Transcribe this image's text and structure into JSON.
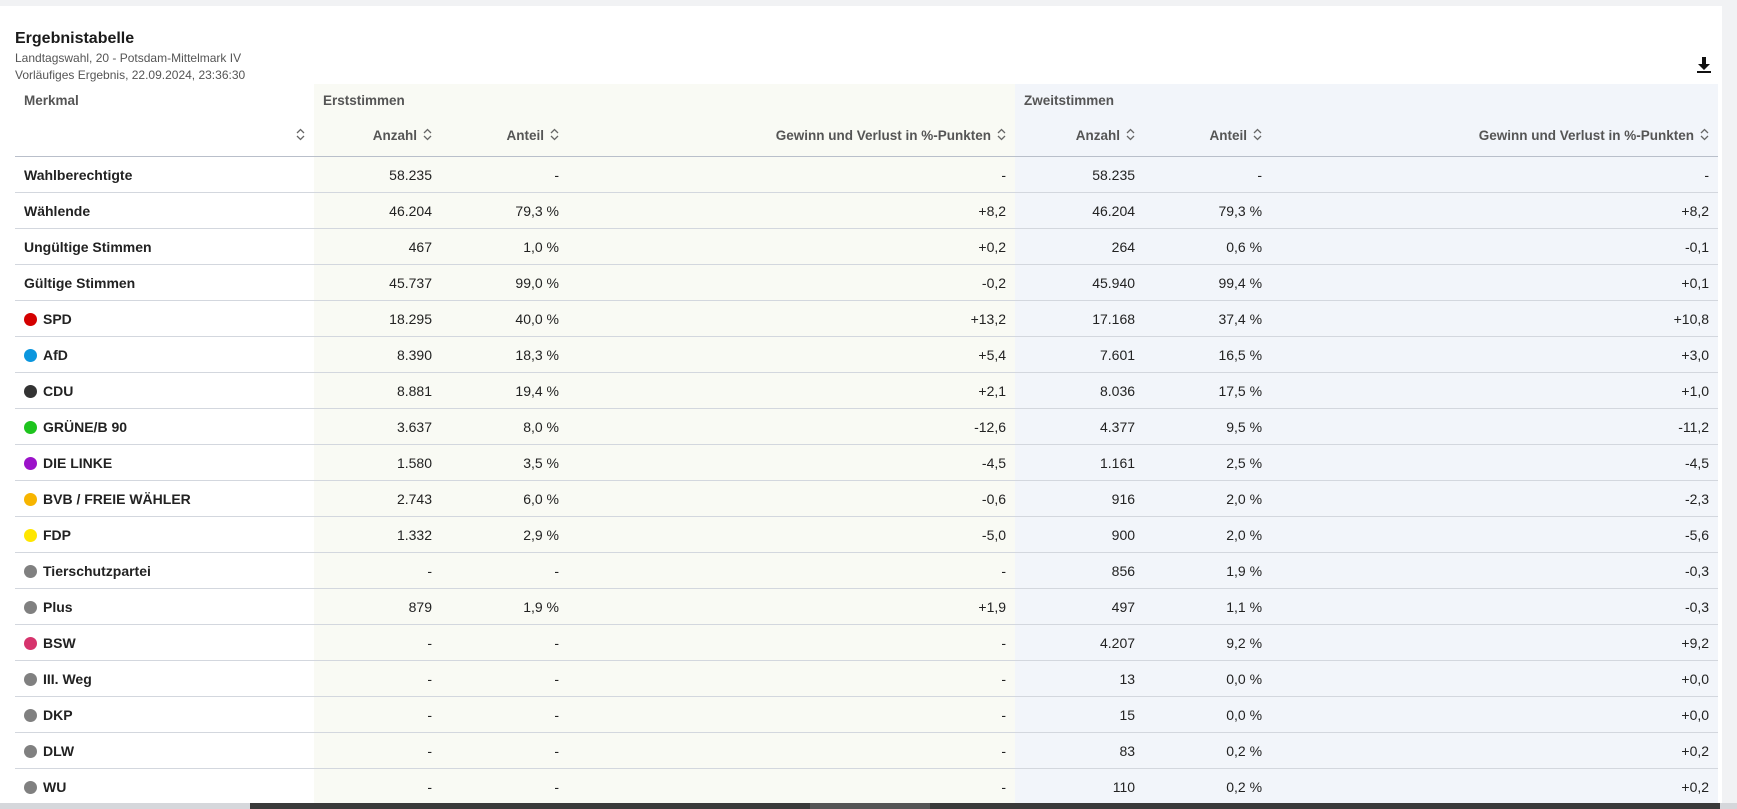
{
  "header": {
    "title": "Ergebnistabelle",
    "election": "Landtagswahl, 20 - Potsdam-Mittelmark IV",
    "status": "Vorläufiges Ergebnis, 22.09.2024, 23:36:30",
    "download_icon": "download-icon"
  },
  "table": {
    "merkmal_header": "Merkmal",
    "erststimmen_header": "Erststimmen",
    "zweitstimmen_header": "Zweitstimmen",
    "columns": {
      "anzahl": "Anzahl",
      "anteil": "Anteil",
      "gewinn": "Gewinn und Verlust in %-Punkten"
    },
    "rows": [
      {
        "label": "Wahlberechtigte",
        "e_anzahl": "58.235",
        "e_anteil": "-",
        "e_gewinn": "-",
        "z_anzahl": "58.235",
        "z_anteil": "-",
        "z_gewinn": "-"
      },
      {
        "label": "Wählende",
        "e_anzahl": "46.204",
        "e_anteil": "79,3 %",
        "e_gewinn": "+8,2",
        "z_anzahl": "46.204",
        "z_anteil": "79,3 %",
        "z_gewinn": "+8,2"
      },
      {
        "label": "Ungültige Stimmen",
        "e_anzahl": "467",
        "e_anteil": "1,0 %",
        "e_gewinn": "+0,2",
        "z_anzahl": "264",
        "z_anteil": "0,6 %",
        "z_gewinn": "-0,1"
      },
      {
        "label": "Gültige Stimmen",
        "e_anzahl": "45.737",
        "e_anteil": "99,0 %",
        "e_gewinn": "-0,2",
        "z_anzahl": "45.940",
        "z_anteil": "99,4 %",
        "z_gewinn": "+0,1"
      },
      {
        "label": "SPD",
        "color": "#d40000",
        "e_anzahl": "18.295",
        "e_anteil": "40,0 %",
        "e_gewinn": "+13,2",
        "z_anzahl": "17.168",
        "z_anteil": "37,4 %",
        "z_gewinn": "+10,8"
      },
      {
        "label": "AfD",
        "color": "#0b96de",
        "e_anzahl": "8.390",
        "e_anteil": "18,3 %",
        "e_gewinn": "+5,4",
        "z_anzahl": "7.601",
        "z_anteil": "16,5 %",
        "z_gewinn": "+3,0"
      },
      {
        "label": "CDU",
        "color": "#333333",
        "e_anzahl": "8.881",
        "e_anteil": "19,4 %",
        "e_gewinn": "+2,1",
        "z_anzahl": "8.036",
        "z_anteil": "17,5 %",
        "z_gewinn": "+1,0"
      },
      {
        "label": "GRÜNE/B 90",
        "color": "#1ec41e",
        "e_anzahl": "3.637",
        "e_anteil": "8,0 %",
        "e_gewinn": "-12,6",
        "z_anzahl": "4.377",
        "z_anteil": "9,5 %",
        "z_gewinn": "-11,2"
      },
      {
        "label": "DIE LINKE",
        "color": "#9b12c9",
        "e_anzahl": "1.580",
        "e_anteil": "3,5 %",
        "e_gewinn": "-4,5",
        "z_anzahl": "1.161",
        "z_anteil": "2,5 %",
        "z_gewinn": "-4,5"
      },
      {
        "label": "BVB / FREIE WÄHLER",
        "color": "#f7b500",
        "e_anzahl": "2.743",
        "e_anteil": "6,0 %",
        "e_gewinn": "-0,6",
        "z_anzahl": "916",
        "z_anteil": "2,0 %",
        "z_gewinn": "-2,3"
      },
      {
        "label": "FDP",
        "color": "#ffe600",
        "e_anzahl": "1.332",
        "e_anteil": "2,9 %",
        "e_gewinn": "-5,0",
        "z_anzahl": "900",
        "z_anteil": "2,0 %",
        "z_gewinn": "-5,6"
      },
      {
        "label": "Tierschutzpartei",
        "color": "#808080",
        "e_anzahl": "-",
        "e_anteil": "-",
        "e_gewinn": "-",
        "z_anzahl": "856",
        "z_anteil": "1,9 %",
        "z_gewinn": "-0,3"
      },
      {
        "label": "Plus",
        "color": "#808080",
        "e_anzahl": "879",
        "e_anteil": "1,9 %",
        "e_gewinn": "+1,9",
        "z_anzahl": "497",
        "z_anteil": "1,1 %",
        "z_gewinn": "-0,3"
      },
      {
        "label": "BSW",
        "color": "#d6336c",
        "e_anzahl": "-",
        "e_anteil": "-",
        "e_gewinn": "-",
        "z_anzahl": "4.207",
        "z_anteil": "9,2 %",
        "z_gewinn": "+9,2"
      },
      {
        "label": "III. Weg",
        "color": "#808080",
        "e_anzahl": "-",
        "e_anteil": "-",
        "e_gewinn": "-",
        "z_anzahl": "13",
        "z_anteil": "0,0 %",
        "z_gewinn": "+0,0"
      },
      {
        "label": "DKP",
        "color": "#808080",
        "e_anzahl": "-",
        "e_anteil": "-",
        "e_gewinn": "-",
        "z_anzahl": "15",
        "z_anteil": "0,0 %",
        "z_gewinn": "+0,0"
      },
      {
        "label": "DLW",
        "color": "#808080",
        "e_anzahl": "-",
        "e_anteil": "-",
        "e_gewinn": "-",
        "z_anzahl": "83",
        "z_anteil": "0,2 %",
        "z_gewinn": "+0,2"
      },
      {
        "label": "WU",
        "color": "#808080",
        "e_anzahl": "-",
        "e_anteil": "-",
        "e_gewinn": "-",
        "z_anzahl": "110",
        "z_anteil": "0,2 %",
        "z_gewinn": "+0,2"
      }
    ]
  }
}
